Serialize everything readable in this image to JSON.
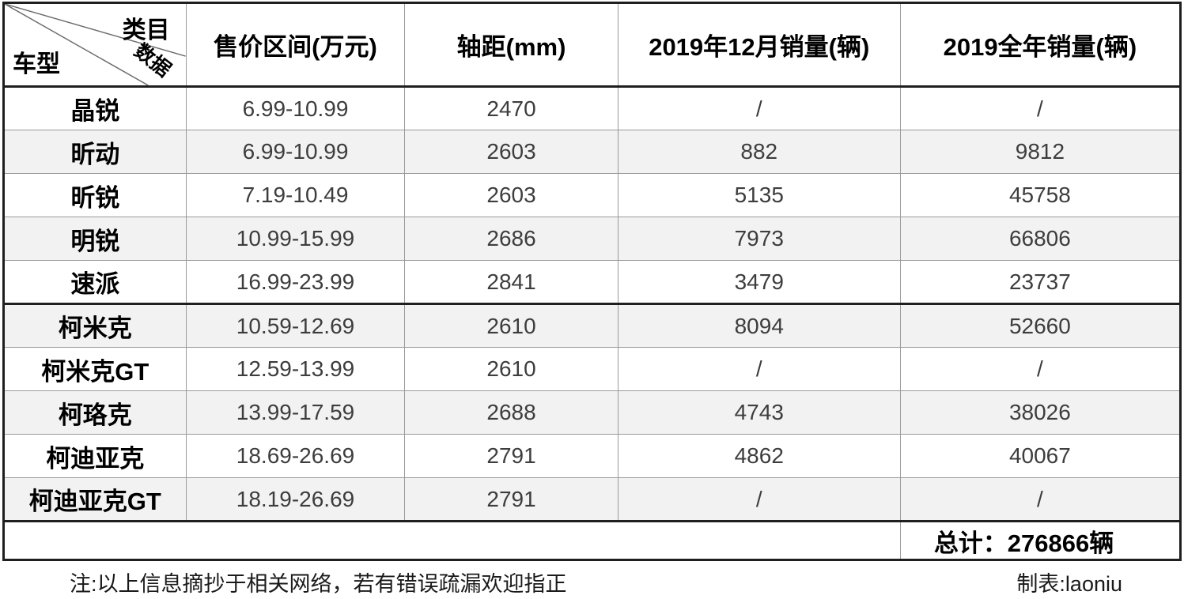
{
  "chart_data": {
    "type": "table",
    "corner": {
      "top": "类目",
      "diagonal": "数据",
      "bottom": "车型"
    },
    "columns": [
      "售价区间(万元)",
      "轴距(mm)",
      "2019年12月销量(辆)",
      "2019全年销量(辆)"
    ],
    "rows": [
      {
        "model": "晶锐",
        "price": "6.99-10.99",
        "wheelbase": "2470",
        "dec2019": "/",
        "year2019": "/"
      },
      {
        "model": "昕动",
        "price": "6.99-10.99",
        "wheelbase": "2603",
        "dec2019": "882",
        "year2019": "9812"
      },
      {
        "model": "昕锐",
        "price": "7.19-10.49",
        "wheelbase": "2603",
        "dec2019": "5135",
        "year2019": "45758"
      },
      {
        "model": "明锐",
        "price": "10.99-15.99",
        "wheelbase": "2686",
        "dec2019": "7973",
        "year2019": "66806"
      },
      {
        "model": "速派",
        "price": "16.99-23.99",
        "wheelbase": "2841",
        "dec2019": "3479",
        "year2019": "23737"
      },
      {
        "model": "柯米克",
        "price": "10.59-12.69",
        "wheelbase": "2610",
        "dec2019": "8094",
        "year2019": "52660"
      },
      {
        "model": "柯米克GT",
        "price": "12.59-13.99",
        "wheelbase": "2610",
        "dec2019": "/",
        "year2019": "/"
      },
      {
        "model": "柯珞克",
        "price": "13.99-17.59",
        "wheelbase": "2688",
        "dec2019": "4743",
        "year2019": "38026"
      },
      {
        "model": "柯迪亚克",
        "price": "18.69-26.69",
        "wheelbase": "2791",
        "dec2019": "4862",
        "year2019": "40067"
      },
      {
        "model": "柯迪亚克GT",
        "price": "18.19-26.69",
        "wheelbase": "2791",
        "dec2019": "/",
        "year2019": "/"
      }
    ],
    "total_label": "总计：276866辆",
    "total_value": 276866,
    "section_break_row_index": 5
  },
  "footer": {
    "note": "注:以上信息摘抄于相关网络，若有错误疏漏欢迎指正",
    "credit": "制表:laoniu"
  },
  "colors": {
    "border_dark": "#1f1f1f",
    "border_light": "#9a9a9a",
    "alt_row_bg": "#f2f2f2",
    "text_data": "#3d3d3d"
  }
}
